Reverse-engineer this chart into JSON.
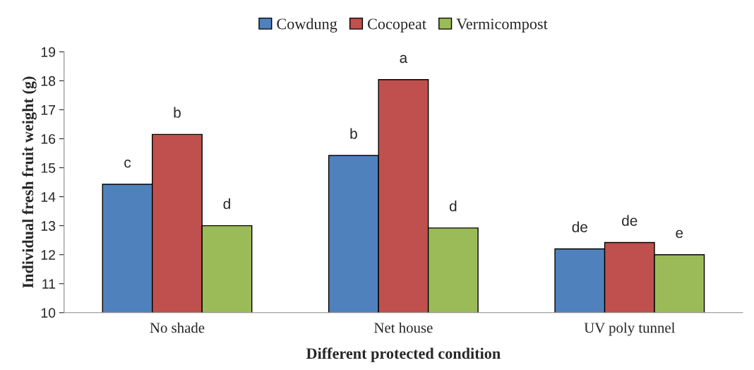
{
  "chart_data": {
    "type": "bar",
    "xlabel": "Different protected condition",
    "ylabel": "Individual fresh fruit weight (g)",
    "categories": [
      "No shade",
      "Net house",
      "UV poly tunnel"
    ],
    "series": [
      {
        "name": "Cowdung",
        "color": "#4f81bd",
        "values": [
          14.43,
          15.42,
          12.2
        ],
        "value_labels": [
          "c",
          "b",
          "de"
        ]
      },
      {
        "name": "Cocopeat",
        "color": "#c0504d",
        "values": [
          16.15,
          18.04,
          12.42
        ],
        "value_labels": [
          "b",
          "a",
          "de"
        ]
      },
      {
        "name": "Vermicompost",
        "color": "#9bbb59",
        "values": [
          13.0,
          12.92,
          12.0
        ],
        "value_labels": [
          "d",
          "d",
          "e"
        ]
      }
    ],
    "ylim": [
      10,
      19
    ],
    "yticks": [
      10,
      11,
      12,
      13,
      14,
      15,
      16,
      17,
      18,
      19
    ],
    "grid": false,
    "legend": "top"
  }
}
